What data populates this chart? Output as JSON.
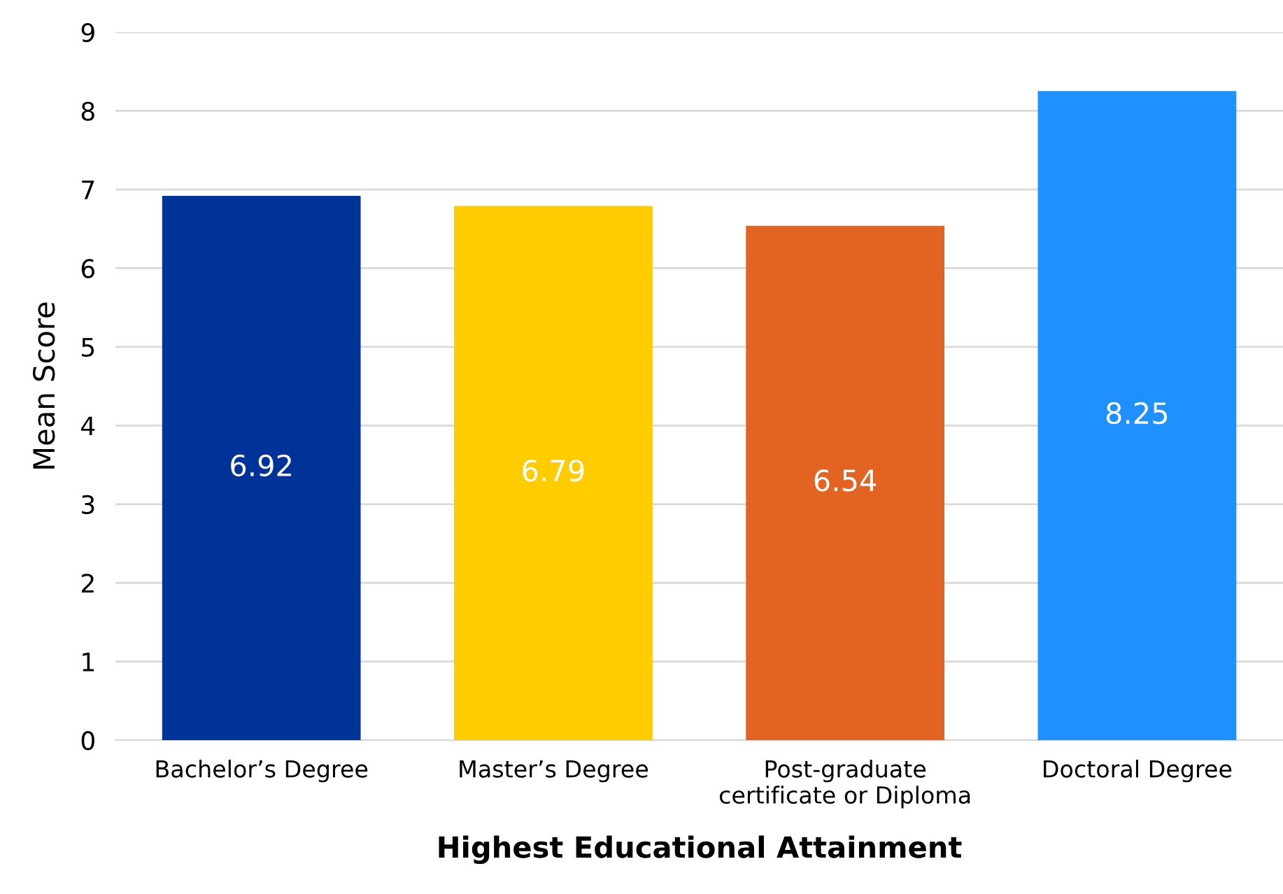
{
  "chart_data": {
    "type": "bar",
    "xlabel": "Highest Educational Attainment",
    "ylabel": "Mean Score",
    "categories": [
      "Bachelor’s Degree",
      "Master’s Degree",
      "Post-graduate\ncertificate or Diploma",
      "Doctoral Degree"
    ],
    "values": [
      6.92,
      6.79,
      6.54,
      8.25
    ],
    "colors": [
      "#003399",
      "#ffcc00",
      "#e26322",
      "#1e90ff"
    ],
    "ylim": [
      0,
      9
    ],
    "yticks": [
      0,
      1,
      2,
      3,
      4,
      5,
      6,
      7,
      8,
      9
    ],
    "grid": "y",
    "data_labels": true,
    "legend": false
  }
}
